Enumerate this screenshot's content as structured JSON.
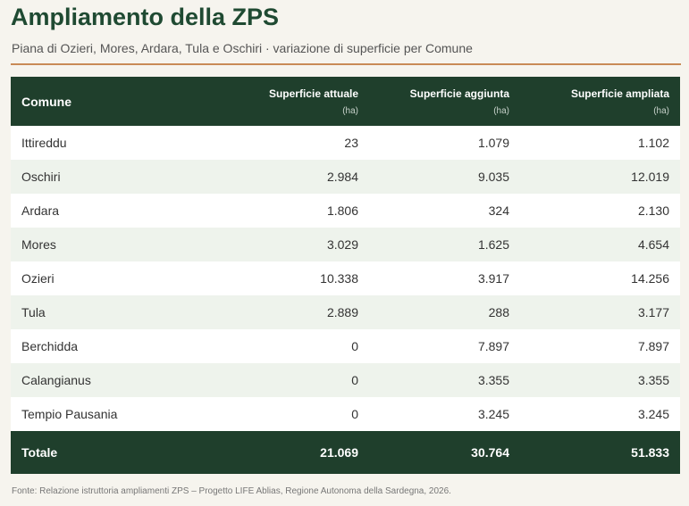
{
  "header": {
    "title": "Ampliamento della ZPS",
    "subtitle": "Piana di Ozieri, Mores, Ardara, Tula e Oschiri · variazione di superficie per Comune"
  },
  "table": {
    "columns": [
      {
        "label": "Comune",
        "unit": ""
      },
      {
        "label": "Superficie attuale",
        "unit": "(ha)"
      },
      {
        "label": "Superficie aggiunta",
        "unit": "(ha)"
      },
      {
        "label": "Superficie ampliata",
        "unit": "(ha)"
      }
    ],
    "rows": [
      {
        "comune": "Ittireddu",
        "attuale": "23",
        "aggiunta": "1.079",
        "ampliata": "1.102"
      },
      {
        "comune": "Oschiri",
        "attuale": "2.984",
        "aggiunta": "9.035",
        "ampliata": "12.019"
      },
      {
        "comune": "Ardara",
        "attuale": "1.806",
        "aggiunta": "324",
        "ampliata": "2.130"
      },
      {
        "comune": "Mores",
        "attuale": "3.029",
        "aggiunta": "1.625",
        "ampliata": "4.654"
      },
      {
        "comune": "Ozieri",
        "attuale": "10.338",
        "aggiunta": "3.917",
        "ampliata": "14.256"
      },
      {
        "comune": "Tula",
        "attuale": "2.889",
        "aggiunta": "288",
        "ampliata": "3.177"
      },
      {
        "comune": "Berchidda",
        "attuale": "0",
        "aggiunta": "7.897",
        "ampliata": "7.897"
      },
      {
        "comune": "Calangianus",
        "attuale": "0",
        "aggiunta": "3.355",
        "ampliata": "3.355"
      },
      {
        "comune": "Tempio Pausania",
        "attuale": "0",
        "aggiunta": "3.245",
        "ampliata": "3.245"
      }
    ],
    "total": {
      "comune": "Totale",
      "attuale": "21.069",
      "aggiunta": "30.764",
      "ampliata": "51.833"
    }
  },
  "footer": {
    "source": "Fonte: Relazione istruttoria ampliamenti ZPS – Progetto LIFE Ablias, Regione Autonoma della Sardegna, 2026."
  },
  "colors": {
    "title": "#1f4a32",
    "header_bg": "#1f3f2c",
    "accent_rule": "#c98a56",
    "row_alt": "#eef3ec",
    "page_bg": "#f6f4ee"
  }
}
